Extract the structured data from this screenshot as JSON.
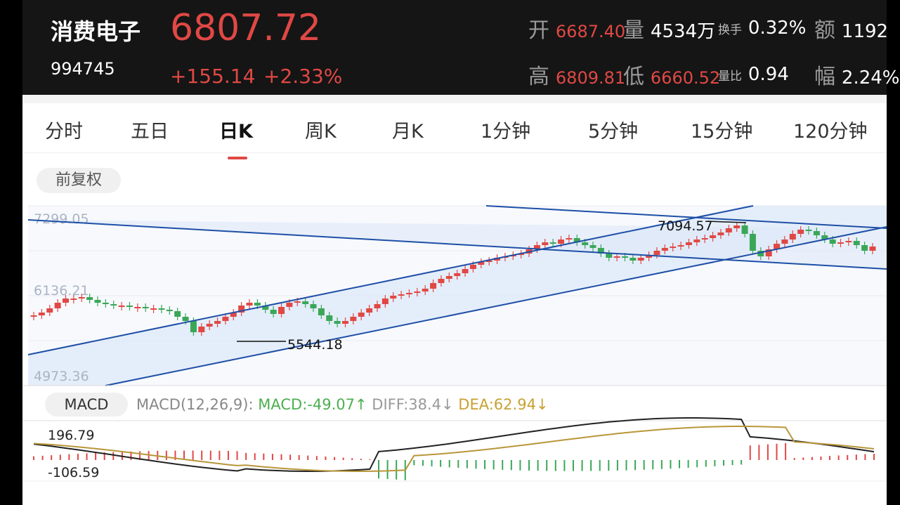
{
  "header": {
    "name": "消费电子",
    "code": "994745",
    "price": "6807.72",
    "change": "+155.14",
    "change_pct": "+2.33%",
    "open_label": "开",
    "open_value": "6687.40",
    "volume_label": "量",
    "volume_value": "4534万",
    "turnover_label": "换手",
    "turnover_value": "0.32%",
    "amount_label": "额",
    "amount_value": "1192",
    "high_label": "高",
    "high_value": "6809.81",
    "low_label": "低",
    "low_value": "6660.52",
    "volratio_label": "量比",
    "volratio_value": "0.94",
    "amp_label": "幅",
    "amp_value": "2.24%"
  },
  "tabs": [
    "分时",
    "五日",
    "日K",
    "周K",
    "月K",
    "1分钟",
    "5分钟",
    "15分钟",
    "120分钟"
  ],
  "active_tab": "日K",
  "adjust_label": "前复权",
  "kline": {
    "y_top": "7299.05",
    "y_mid": "6136.21",
    "y_bot": "4973.36",
    "annot_high": "7094.57",
    "annot_low": "5544.18",
    "colors": {
      "up": "#e04844",
      "down": "#3aa757",
      "channel": "#1e4fa6",
      "band": "#dde8f8"
    }
  },
  "macd": {
    "label": "MACD",
    "params": "MACD(12,26,9):",
    "macd": "MACD:-49.07↑",
    "diff": "DIFF:38.4↓",
    "dea": "DEA:62.94↓",
    "axis_top": "196.79",
    "axis_bot": "-106.59"
  }
}
